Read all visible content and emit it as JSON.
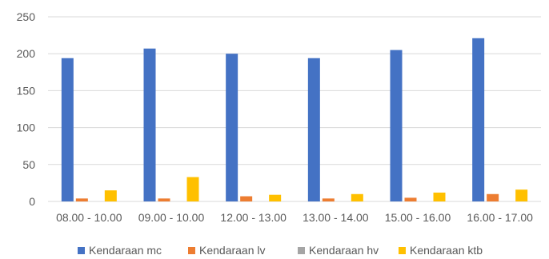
{
  "chart_data": {
    "type": "bar",
    "title": "",
    "xlabel": "",
    "ylabel": "",
    "categories": [
      "08.00 - 10.00",
      "09.00 - 10.00",
      "12.00 - 13.00",
      "13.00 - 14.00",
      "15.00 - 16.00",
      "16.00 - 17.00"
    ],
    "series": [
      {
        "name": "Kendaraan mc",
        "color": "#4472c4",
        "values": [
          194,
          207,
          200,
          194,
          205,
          221
        ]
      },
      {
        "name": "Kendaraan lv",
        "color": "#ed7d31",
        "values": [
          4,
          4,
          7,
          4,
          5,
          10
        ]
      },
      {
        "name": "Kendaraan hv",
        "color": "#a5a5a5",
        "values": [
          0,
          0,
          0,
          0,
          0,
          0
        ]
      },
      {
        "name": "Kendaraan ktb",
        "color": "#ffc000",
        "values": [
          15,
          33,
          9,
          10,
          12,
          16
        ]
      }
    ],
    "ylim": [
      0,
      250
    ],
    "yticks": [
      0,
      50,
      100,
      150,
      200,
      250
    ],
    "grid": true,
    "legend_position": "bottom"
  }
}
